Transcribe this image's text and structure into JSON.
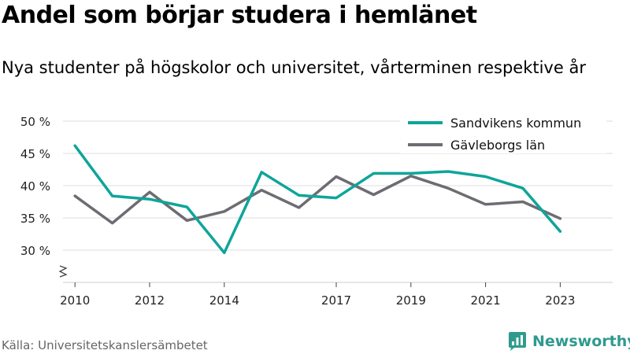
{
  "header": {
    "title": "Andel som börjar studera i hemlänet",
    "subtitle": "Nya studenter på högskolor och universitet, vårterminen respektive år"
  },
  "footer": {
    "source": "Källa: Universitetskanslersämbetet",
    "brand": "Newsworthy",
    "brand_icon": "newsworthy-logo-icon"
  },
  "chart_data": {
    "type": "line",
    "title": "Andel som börjar studera i hemlänet",
    "subtitle": "Nya studenter på högskolor och universitet, vårterminen respektive år",
    "x": [
      2010,
      2011,
      2012,
      2013,
      2014,
      2015,
      2016,
      2017,
      2018,
      2019,
      2020,
      2021,
      2022,
      2023
    ],
    "x_ticks": [
      "2010",
      "2012",
      "2014",
      "2017",
      "2019",
      "2021",
      "2023"
    ],
    "y_ticks": [
      "30 %",
      "35 %",
      "40 %",
      "45 %",
      "50 %"
    ],
    "y_tick_values": [
      30,
      35,
      40,
      45,
      50
    ],
    "ylim": [
      25,
      50
    ],
    "axis_break": true,
    "grid": "horizontal",
    "legend_position": "top-right",
    "series": [
      {
        "name": "Sandvikens kommun",
        "color": "#0ea59a",
        "values": [
          46.2,
          38.4,
          37.9,
          36.7,
          29.6,
          42.1,
          38.5,
          38.1,
          41.9,
          41.9,
          42.2,
          41.4,
          39.6,
          32.9
        ]
      },
      {
        "name": "Gävleborgs län",
        "color": "#6e6c72",
        "values": [
          38.4,
          34.2,
          39.0,
          34.6,
          36.0,
          39.3,
          36.6,
          41.4,
          38.6,
          41.5,
          39.6,
          37.1,
          37.5,
          34.9
        ]
      }
    ]
  }
}
